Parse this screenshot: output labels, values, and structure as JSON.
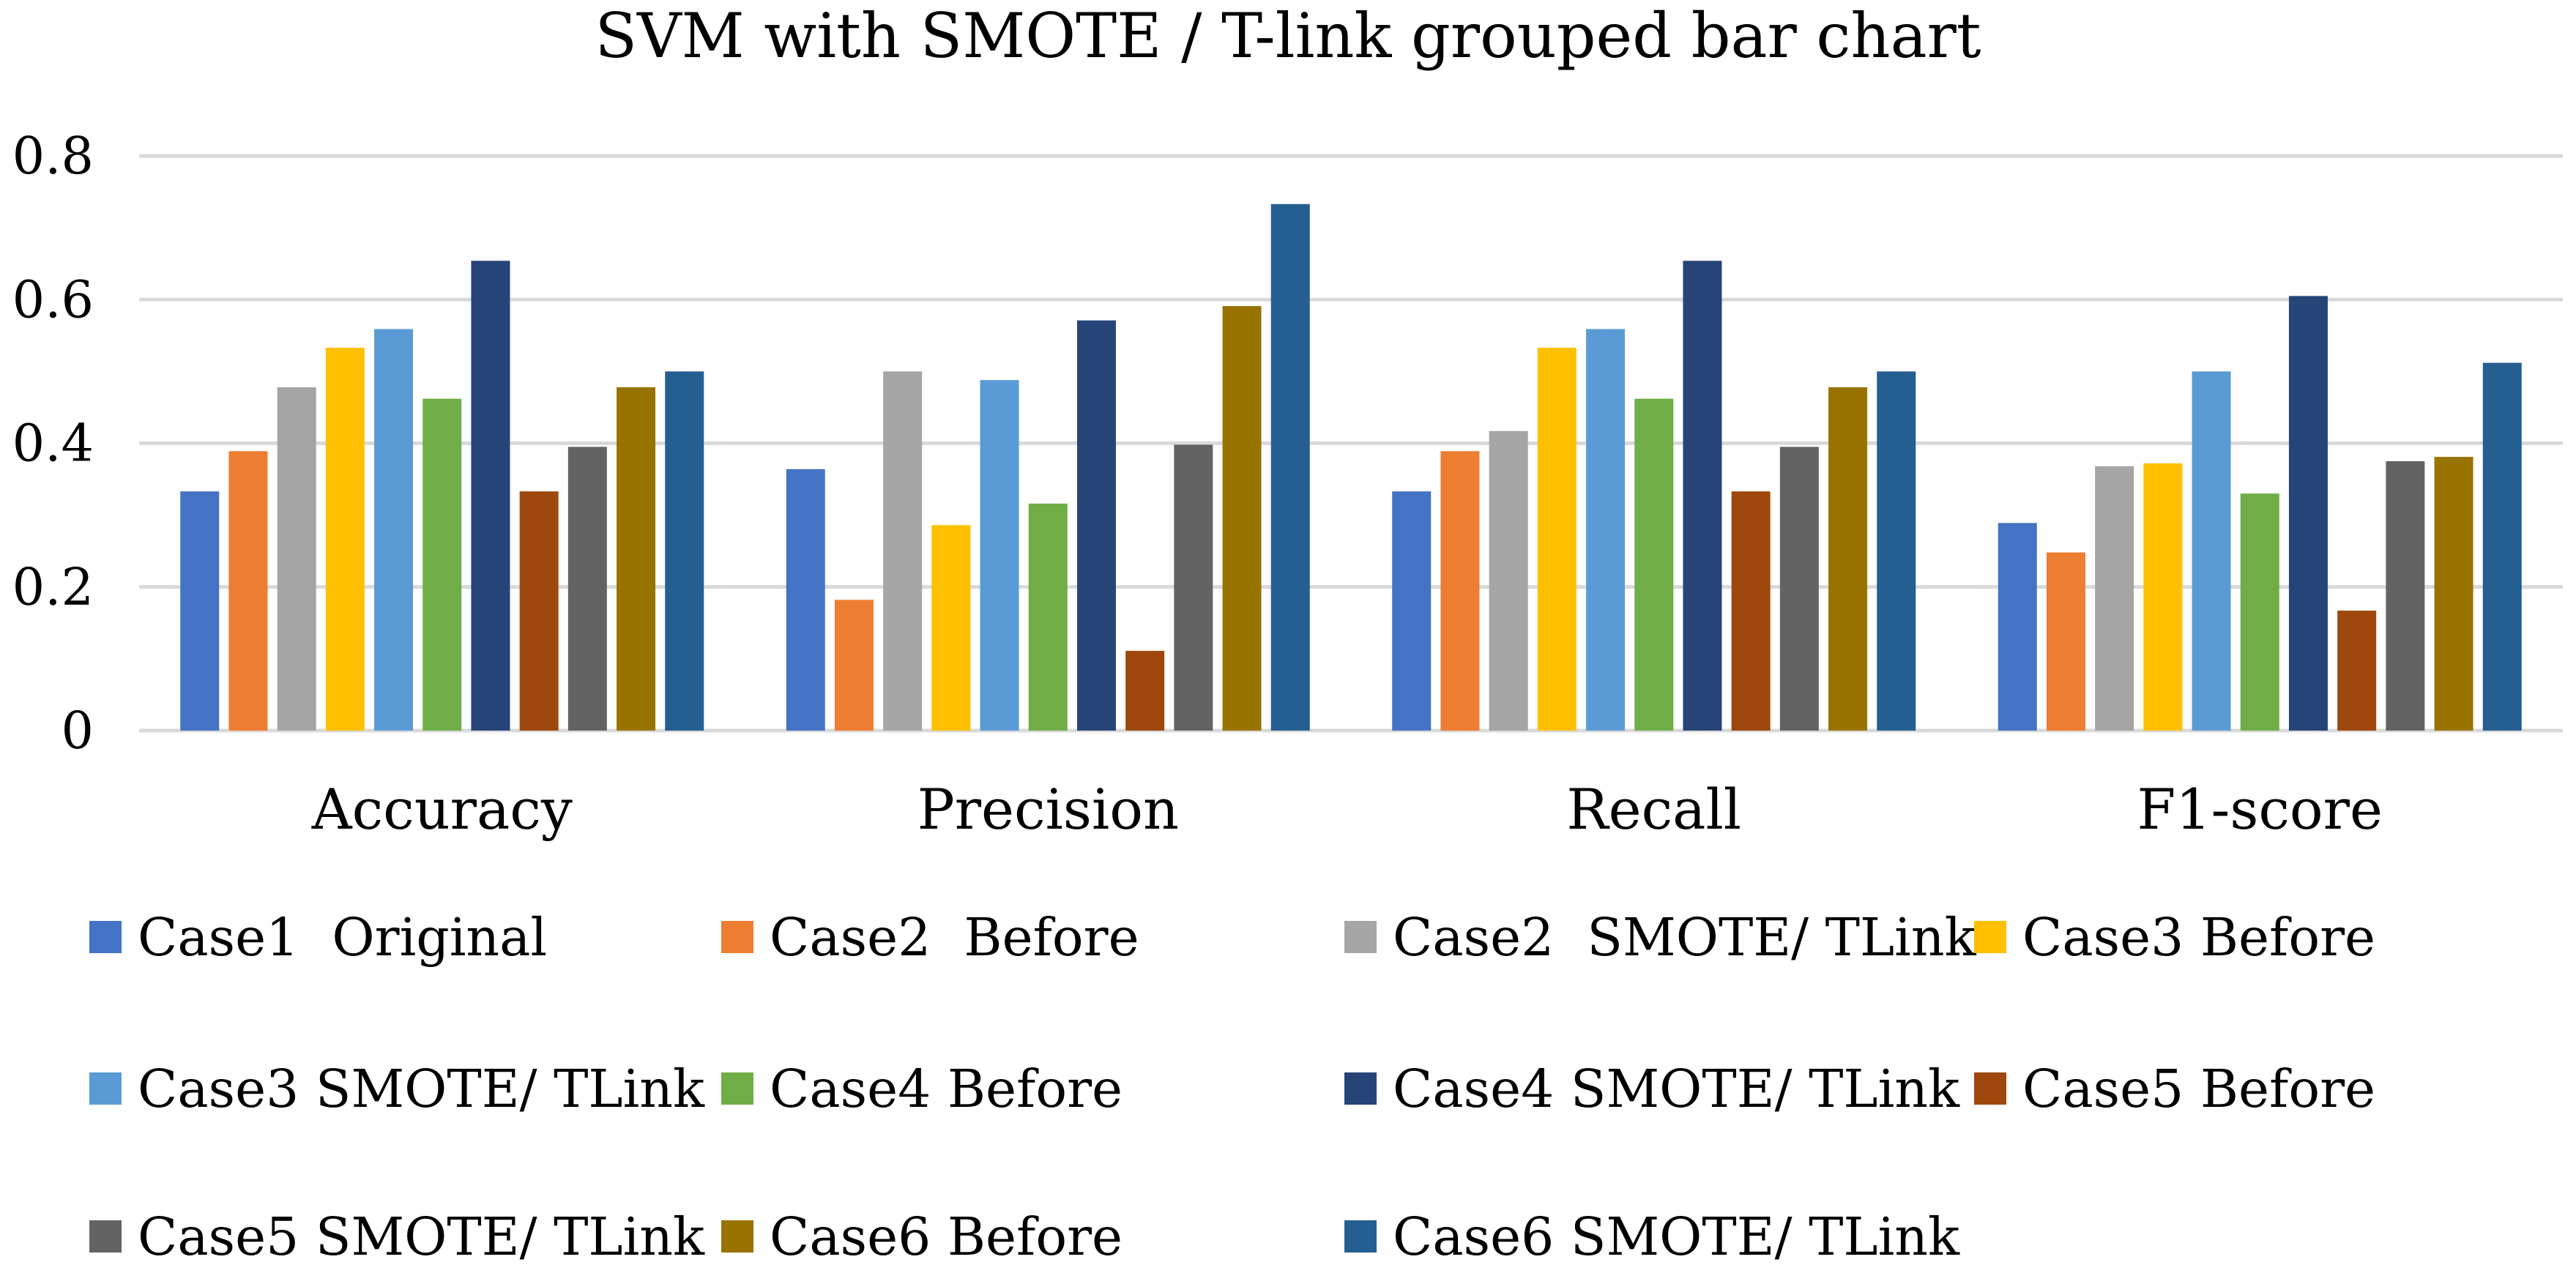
{
  "chart_data": {
    "type": "bar",
    "title": "SVM with SMOTE / T-link grouped bar chart",
    "xlabel": "",
    "ylabel": "",
    "ylim": [
      0,
      0.8
    ],
    "yticks": [
      0,
      0.2,
      0.4,
      0.6,
      0.8
    ],
    "ytick_labels": [
      "0",
      "0.2",
      "0.4",
      "0.6",
      "0.8"
    ],
    "categories": [
      "Accuracy",
      "Precision",
      "Recall",
      "F1-score"
    ],
    "grid": true,
    "legend_position": "bottom",
    "series": [
      {
        "name": "Case1  Original",
        "color": "#4472C4",
        "values": [
          0.333,
          0.364,
          0.333,
          0.289
        ]
      },
      {
        "name": "Case2  Before",
        "color": "#ED7D31",
        "values": [
          0.389,
          0.182,
          0.389,
          0.248
        ]
      },
      {
        "name": "Case2  SMOTE/ TLink",
        "color": "#A5A5A5",
        "values": [
          0.478,
          0.5,
          0.417,
          0.368
        ]
      },
      {
        "name": "Case3 Before",
        "color": "#FFC000",
        "values": [
          0.533,
          0.286,
          0.533,
          0.372
        ]
      },
      {
        "name": "Case3 SMOTE/ TLink",
        "color": "#5B9BD5",
        "values": [
          0.559,
          0.488,
          0.559,
          0.5
        ]
      },
      {
        "name": "Case4 Before",
        "color": "#70AD47",
        "values": [
          0.462,
          0.316,
          0.462,
          0.33
        ]
      },
      {
        "name": "Case4 SMOTE/ TLink",
        "color": "#264478",
        "values": [
          0.654,
          0.571,
          0.654,
          0.605
        ]
      },
      {
        "name": "Case5 Before",
        "color": "#9E480E",
        "values": [
          0.333,
          0.111,
          0.333,
          0.167
        ]
      },
      {
        "name": "Case5 SMOTE/ TLink",
        "color": "#636363",
        "values": [
          0.395,
          0.398,
          0.395,
          0.375
        ]
      },
      {
        "name": "Case6 Before",
        "color": "#997300",
        "values": [
          0.478,
          0.591,
          0.478,
          0.381
        ]
      },
      {
        "name": "Case6 SMOTE/ TLink",
        "color": "#255E91",
        "values": [
          0.5,
          0.733,
          0.5,
          0.512
        ]
      }
    ]
  }
}
